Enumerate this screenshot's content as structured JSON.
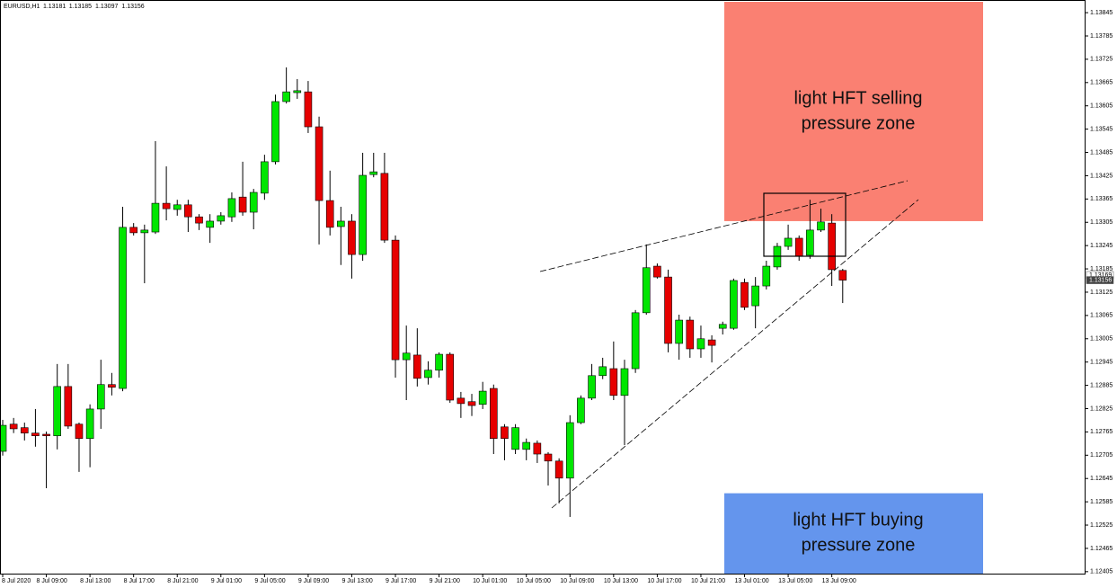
{
  "chart_data": {
    "type": "candlestick",
    "symbol": "EURUSD,H1",
    "ohlc": [
      1.13181,
      1.13185,
      1.13097,
      1.13156
    ],
    "up_color": "#00e600",
    "down_color": "#e60000",
    "categories": [
      "8 Jul 2020",
      null,
      null,
      null,
      "8 Jul 09:00",
      null,
      null,
      null,
      "8 Jul 13:00",
      null,
      null,
      null,
      "8 Jul 17:00",
      null,
      null,
      null,
      "8 Jul 21:00",
      null,
      null,
      null,
      "9 Jul 01:00",
      null,
      null,
      null,
      "9 Jul 05:00",
      null,
      null,
      null,
      "9 Jul 09:00",
      null,
      null,
      null,
      "9 Jul 13:00",
      null,
      null,
      null,
      "9 Jul 17:00",
      null,
      null,
      null,
      "9 Jul 21:00",
      null,
      null,
      null,
      "10 Jul 01:00",
      null,
      null,
      null,
      "10 Jul 05:00",
      null,
      null,
      null,
      "10 Jul 09:00",
      null,
      null,
      null,
      "10 Jul 13:00",
      null,
      null,
      null,
      "10 Jul 17:00",
      null,
      null,
      null,
      "10 Jul 21:00",
      null,
      null,
      null,
      "13 Jul 01:00",
      null,
      null,
      null,
      "13 Jul 05:00",
      null,
      null,
      null,
      "13 Jul 09:00",
      null
    ],
    "open": [
      1.12715,
      1.12785,
      1.12776,
      1.12762,
      1.12759,
      1.12755,
      1.12882,
      1.12785,
      1.12748,
      1.12824,
      1.12887,
      1.12877,
      1.13292,
      1.13278,
      1.1328,
      1.13354,
      1.13338,
      1.1335,
      1.13319,
      1.13292,
      1.13308,
      1.13319,
      1.1337,
      1.13331,
      1.1338,
      1.13461,
      1.13616,
      1.13639,
      1.13641,
      1.13551,
      1.13361,
      1.13294,
      1.13308,
      1.13222,
      1.13428,
      1.13431,
      1.13259,
      1.12951,
      1.12963,
      1.12905,
      1.12924,
      1.12965,
      1.12852,
      1.12843,
      1.12836,
      1.12877,
      1.12778,
      1.1272,
      1.1272,
      1.12736,
      1.12708,
      1.1269,
      1.12646,
      1.12789,
      1.12852,
      1.1291,
      1.12928,
      1.12859,
      1.12928,
      1.13072,
      1.13192,
      1.13164,
      1.12993,
      1.13053,
      1.12979,
      1.13002,
      1.13032,
      1.13032,
      1.1315,
      1.1309,
      1.13141,
      1.1319,
      1.13243,
      1.13264,
      1.1322,
      1.13285,
      1.13303,
      1.13181
    ],
    "high": [
      1.12796,
      1.12801,
      1.12789,
      1.12824,
      1.12766,
      1.1294,
      1.1294,
      1.12789,
      1.12836,
      1.12951,
      1.12917,
      1.13345,
      1.13303,
      1.13299,
      1.13514,
      1.13449,
      1.13363,
      1.13363,
      1.13326,
      1.13326,
      1.13331,
      1.13382,
      1.13461,
      1.13391,
      1.13479,
      1.13634,
      1.13704,
      1.13674,
      1.13669,
      1.13577,
      1.13438,
      1.13345,
      1.13326,
      1.13484,
      1.13484,
      1.13484,
      1.13271,
      1.13039,
      1.13032,
      1.12947,
      1.1297,
      1.1297,
      1.12868,
      1.12863,
      1.12894,
      1.12887,
      1.12785,
      1.12785,
      1.12748,
      1.12743,
      1.12713,
      1.12697,
      1.12808,
      1.12859,
      1.1294,
      1.12956,
      1.12998,
      1.12951,
      1.13079,
      1.13248,
      1.13199,
      1.13183,
      1.13067,
      1.13062,
      1.13039,
      1.13014,
      1.13049,
      1.1316,
      1.1316,
      1.13164,
      1.13206,
      1.13252,
      1.13299,
      1.13271,
      1.13363,
      1.1334,
      1.13326,
      1.13185
    ],
    "low": [
      1.12704,
      1.12762,
      1.12743,
      1.12727,
      1.1262,
      1.1272,
      1.12773,
      1.12662,
      1.12674,
      1.12773,
      1.12859,
      1.1287,
      1.13271,
      1.13148,
      1.13275,
      1.1331,
      1.13322,
      1.1328,
      1.13285,
      1.13252,
      1.13299,
      1.13306,
      1.13322,
      1.13287,
      1.13363,
      1.13454,
      1.13611,
      1.13623,
      1.13535,
      1.13248,
      1.13271,
      1.13195,
      1.1316,
      1.13206,
      1.13421,
      1.13252,
      1.12905,
      1.12847,
      1.12882,
      1.12887,
      1.12905,
      1.1284,
      1.12801,
      1.12806,
      1.12824,
      1.12708,
      1.12692,
      1.12708,
      1.12692,
      1.12685,
      1.12627,
      1.12581,
      1.12546,
      1.12785,
      1.12847,
      1.12901,
      1.12847,
      1.12731,
      1.12917,
      1.13067,
      1.1316,
      1.1297,
      1.12951,
      1.12956,
      1.12956,
      1.12944,
      1.13016,
      1.13028,
      1.13079,
      1.13032,
      1.13132,
      1.13183,
      1.13234,
      1.13206,
      1.13211,
      1.1328,
      1.13141,
      1.13097
    ],
    "close": [
      1.12782,
      1.12773,
      1.12762,
      1.12755,
      1.12755,
      1.12882,
      1.1278,
      1.12748,
      1.12824,
      1.12887,
      1.1288,
      1.13292,
      1.13278,
      1.13285,
      1.13354,
      1.1334,
      1.1335,
      1.13319,
      1.13303,
      1.13308,
      1.13322,
      1.13366,
      1.13331,
      1.13382,
      1.13461,
      1.13616,
      1.13641,
      1.13644,
      1.13551,
      1.13361,
      1.13292,
      1.13308,
      1.13222,
      1.13426,
      1.13435,
      1.13259,
      1.12951,
      1.12968,
      1.12903,
      1.12924,
      1.12965,
      1.12847,
      1.12838,
      1.12833,
      1.1287,
      1.12748,
      1.12748,
      1.12776,
      1.12738,
      1.12708,
      1.1269,
      1.12646,
      1.12789,
      1.12852,
      1.1291,
      1.12933,
      1.12859,
      1.12928,
      1.13072,
      1.13188,
      1.13164,
      1.12993,
      1.13053,
      1.12979,
      1.13005,
      1.12988,
      1.13042,
      1.13155,
      1.13086,
      1.13141,
      1.13192,
      1.13243,
      1.13264,
      1.13218,
      1.13285,
      1.13306,
      1.13183,
      1.13156
    ],
    "ylim": [
      1.124,
      1.13873
    ],
    "yticks": [
      1.13845,
      1.13785,
      1.13725,
      1.13665,
      1.13605,
      1.13545,
      1.13485,
      1.13425,
      1.13365,
      1.13305,
      1.13245,
      1.13185,
      1.13125,
      1.13065,
      1.13005,
      1.12945,
      1.12885,
      1.12825,
      1.12765,
      1.12705,
      1.12645,
      1.12585,
      1.12525,
      1.12465,
      1.12405
    ],
    "price_labels": [
      1.13169,
      1.13156
    ],
    "zones": [
      {
        "lines": [
          "light HFT selling",
          "pressure zone"
        ],
        "color": "#fa8072",
        "top": 1.13873,
        "bottom": 1.13308
      },
      {
        "lines": [
          "light HFT buying",
          "pressure zone"
        ],
        "color": "#6495ed",
        "top": 1.12607,
        "bottom": 1.124
      }
    ]
  }
}
